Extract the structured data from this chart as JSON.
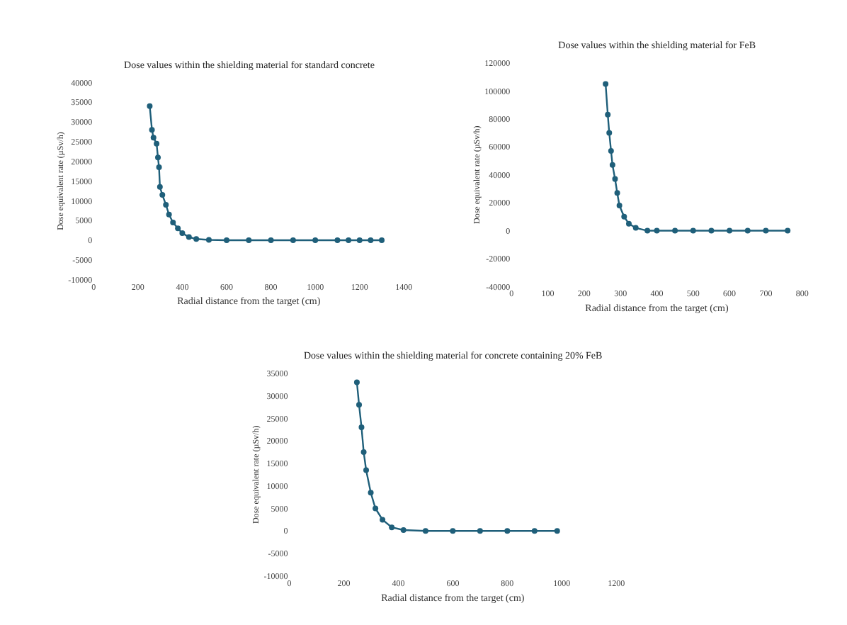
{
  "chart_data": [
    {
      "type": "line",
      "title": "Dose values within the shielding material for standard concrete",
      "xlabel": "Radial distance from the target (cm)",
      "ylabel": "Dose equivalent rate (µSv/h)",
      "marker": "circle",
      "line_style": "solid",
      "xlim": [
        0,
        1400
      ],
      "xticks": [
        0,
        200,
        400,
        600,
        800,
        1000,
        1200,
        1400
      ],
      "ylim": [
        -10000,
        40000
      ],
      "yticks": [
        -10000,
        -5000,
        0,
        5000,
        10000,
        15000,
        20000,
        25000,
        30000,
        35000,
        40000
      ],
      "series": [
        {
          "color": "#1f5f7a",
          "x": [
            253,
            263,
            270,
            284,
            290,
            295,
            299,
            310,
            326,
            340,
            358,
            380,
            400,
            430,
            463,
            520,
            600,
            700,
            800,
            900,
            1000,
            1100,
            1150,
            1200,
            1250,
            1300
          ],
          "values": [
            34000,
            28000,
            26000,
            24500,
            21000,
            18500,
            13500,
            11500,
            9000,
            6500,
            4500,
            3000,
            1800,
            800,
            300,
            100,
            0,
            0,
            0,
            0,
            0,
            0,
            0,
            0,
            0,
            0
          ]
        }
      ]
    },
    {
      "type": "line",
      "title": "Dose values within the shielding material for FeB",
      "xlabel": "Radial distance from the target (cm)",
      "ylabel": "Dose equivalent rate (µSv/h)",
      "marker": "circle",
      "line_style": "solid",
      "xlim": [
        0,
        800
      ],
      "xticks": [
        0,
        100,
        200,
        300,
        400,
        500,
        600,
        700,
        800
      ],
      "ylim": [
        -40000,
        120000
      ],
      "yticks": [
        -40000,
        -20000,
        0,
        20000,
        40000,
        60000,
        80000,
        100000,
        120000
      ],
      "series": [
        {
          "color": "#1f5f7a",
          "x": [
            259,
            265,
            269,
            274,
            278,
            285,
            291,
            297,
            310,
            323,
            342,
            374,
            400,
            450,
            500,
            550,
            600,
            650,
            700,
            760
          ],
          "values": [
            105000,
            83000,
            70000,
            57000,
            47000,
            37000,
            27000,
            18000,
            10000,
            5000,
            2000,
            0,
            0,
            0,
            0,
            0,
            0,
            0,
            0,
            0
          ]
        }
      ]
    },
    {
      "type": "line",
      "title": "Dose values within the shielding material for concrete containing 20% FeB",
      "xlabel": "Radial distance from the target (cm)",
      "ylabel": "Dose equivalent rate (µSv/h)",
      "marker": "circle",
      "line_style": "solid",
      "xlim": [
        0,
        1200
      ],
      "xticks": [
        0,
        200,
        400,
        600,
        800,
        1000,
        1200
      ],
      "ylim": [
        -10000,
        35000
      ],
      "yticks": [
        -10000,
        -5000,
        0,
        5000,
        10000,
        15000,
        20000,
        25000,
        30000,
        35000
      ],
      "series": [
        {
          "color": "#1f5f7a",
          "x": [
            248,
            256,
            265,
            273,
            282,
            299,
            316,
            342,
            376,
            419,
            500,
            600,
            700,
            800,
            900,
            983
          ],
          "values": [
            33000,
            28000,
            23000,
            17500,
            13500,
            8500,
            5000,
            2500,
            800,
            200,
            0,
            0,
            0,
            0,
            0,
            0
          ]
        }
      ]
    }
  ]
}
